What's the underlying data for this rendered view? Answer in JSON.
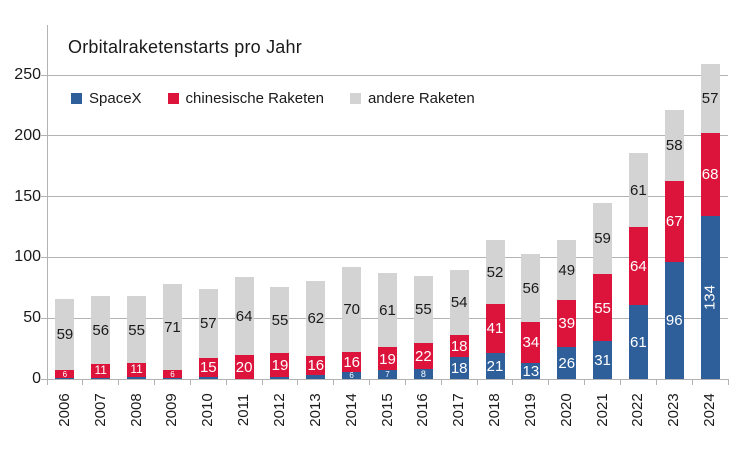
{
  "chart_data": {
    "type": "bar",
    "stacked": true,
    "title": "Orbitalraketenstarts pro Jahr",
    "xlabel": "",
    "ylabel": "",
    "categories": [
      "2006",
      "2007",
      "2008",
      "2009",
      "2010",
      "2011",
      "2012",
      "2013",
      "2014",
      "2015",
      "2016",
      "2017",
      "2018",
      "2019",
      "2020",
      "2021",
      "2022",
      "2023",
      "2024"
    ],
    "series": [
      {
        "name": "SpaceX",
        "color": "#2e5f9b",
        "label_color": "#ffffff",
        "values": [
          1,
          1,
          2,
          1,
          2,
          0,
          2,
          3,
          6,
          7,
          8,
          18,
          21,
          13,
          26,
          31,
          61,
          96,
          134
        ]
      },
      {
        "name": "chinesische Raketen",
        "color": "#dc143c",
        "label_color": "#ffffff",
        "values": [
          6,
          11,
          11,
          6,
          15,
          20,
          19,
          16,
          16,
          19,
          22,
          18,
          41,
          34,
          39,
          55,
          64,
          67,
          68
        ]
      },
      {
        "name": "andere Raketen",
        "color": "#d3d3d3",
        "label_color": "#1a1a1a",
        "values": [
          59,
          56,
          55,
          71,
          57,
          64,
          55,
          62,
          70,
          61,
          55,
          54,
          52,
          56,
          49,
          59,
          61,
          58,
          57
        ]
      }
    ],
    "yticks": [
      0,
      50,
      100,
      150,
      200,
      250
    ],
    "ylim": [
      0,
      260
    ],
    "grid": true,
    "legend_position": "top-left-inside",
    "axis_color": "#b3b3b3"
  }
}
